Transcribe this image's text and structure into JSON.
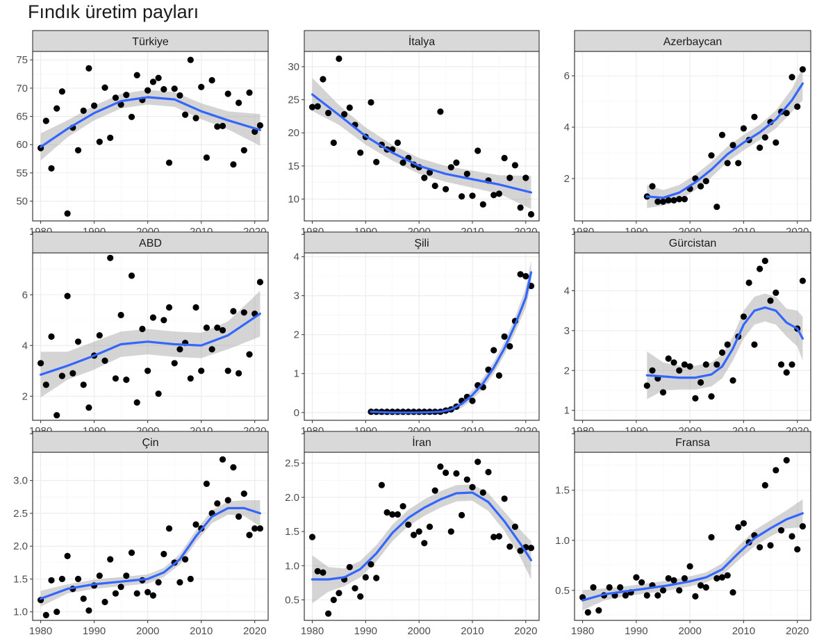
{
  "title": "Fındık üretim payları",
  "colors": {
    "line": "#3366FF",
    "band": "#999999",
    "points": "#000000",
    "strip": "#d9d9d9"
  },
  "chart_data": [
    {
      "type": "scatter",
      "facet": "Türkiye",
      "x_ticks": [
        1980,
        1990,
        2000,
        2010,
        2020
      ],
      "y_ticks": [
        50,
        55,
        60,
        65,
        70,
        75
      ],
      "xlim": [
        1978.5,
        2022.5
      ],
      "ylim": [
        46.5,
        76.5
      ],
      "x": [
        1980,
        1981,
        1982,
        1983,
        1984,
        1985,
        1986,
        1987,
        1988,
        1989,
        1990,
        1991,
        1992,
        1993,
        1994,
        1995,
        1996,
        1997,
        1998,
        1999,
        2000,
        2001,
        2002,
        2003,
        2004,
        2005,
        2006,
        2007,
        2008,
        2009,
        2010,
        2011,
        2012,
        2013,
        2014,
        2015,
        2016,
        2017,
        2018,
        2019,
        2020,
        2021
      ],
      "y": [
        59.4,
        64.2,
        55.8,
        66.4,
        69.4,
        47.8,
        63.0,
        59.0,
        66.0,
        73.5,
        66.9,
        60.5,
        70.1,
        61.2,
        68.3,
        67.1,
        68.8,
        64.9,
        72.3,
        67.9,
        69.6,
        71.1,
        71.8,
        69.8,
        56.8,
        69.9,
        68.7,
        65.3,
        75.0,
        64.7,
        70.2,
        57.7,
        71.4,
        63.2,
        63.3,
        69.0,
        56.5,
        67.4,
        59.0,
        69.2,
        62.3,
        63.4
      ],
      "smooth": {
        "x": [
          1980,
          1985,
          1990,
          1995,
          2000,
          2005,
          2010,
          2015,
          2021
        ],
        "y": [
          59.6,
          62.8,
          65.6,
          67.7,
          68.4,
          68.0,
          65.9,
          64.3,
          62.6
        ],
        "band": [
          2.4,
          1.5,
          1.3,
          1.3,
          1.3,
          1.3,
          1.4,
          1.6,
          2.8
        ]
      }
    },
    {
      "type": "scatter",
      "facet": "İtalya",
      "x_ticks": [
        1980,
        1990,
        2000,
        2010,
        2020
      ],
      "y_ticks": [
        10,
        15,
        20,
        25,
        30
      ],
      "xlim": [
        1978.5,
        2022.5
      ],
      "ylim": [
        6.7,
        32.3
      ],
      "x": [
        1980,
        1981,
        1982,
        1983,
        1984,
        1985,
        1986,
        1987,
        1988,
        1989,
        1990,
        1991,
        1992,
        1993,
        1994,
        1995,
        1996,
        1997,
        1998,
        1999,
        2000,
        2001,
        2002,
        2003,
        2004,
        2005,
        2006,
        2007,
        2008,
        2009,
        2010,
        2011,
        2012,
        2013,
        2014,
        2015,
        2016,
        2017,
        2018,
        2019,
        2020,
        2021
      ],
      "y": [
        23.9,
        24.0,
        28.1,
        23.0,
        18.5,
        31.2,
        22.8,
        23.8,
        21.2,
        17.0,
        19.4,
        24.6,
        15.6,
        18.2,
        17.5,
        17.5,
        18.5,
        15.5,
        16.2,
        15.2,
        14.8,
        13.2,
        14.0,
        12.0,
        23.2,
        11.5,
        14.8,
        15.5,
        10.4,
        13.8,
        10.5,
        17.3,
        9.2,
        12.8,
        10.6,
        10.8,
        16.2,
        13.2,
        15.1,
        8.7,
        13.2,
        7.7
      ],
      "smooth": {
        "x": [
          1980,
          1985,
          1990,
          1995,
          2000,
          2005,
          2010,
          2015,
          2021
        ],
        "y": [
          25.8,
          22.7,
          19.5,
          17.0,
          15.0,
          13.8,
          13.0,
          12.2,
          11.0
        ],
        "band": [
          2.5,
          1.5,
          1.3,
          1.2,
          1.2,
          1.2,
          1.3,
          1.4,
          2.5
        ]
      }
    },
    {
      "type": "scatter",
      "facet": "Azerbaycan",
      "x_ticks": [
        1980,
        1990,
        2000,
        2010,
        2020
      ],
      "y_ticks": [
        2,
        4,
        6
      ],
      "xlim": [
        1978.5,
        2022.5
      ],
      "ylim": [
        0.35,
        6.95
      ],
      "x": [
        1992,
        1993,
        1994,
        1995,
        1996,
        1997,
        1998,
        1999,
        2000,
        2001,
        2002,
        2003,
        2004,
        2005,
        2006,
        2007,
        2008,
        2009,
        2010,
        2011,
        2012,
        2013,
        2014,
        2015,
        2016,
        2017,
        2018,
        2019,
        2020,
        2021
      ],
      "y": [
        1.3,
        1.7,
        1.1,
        1.1,
        1.15,
        1.15,
        1.2,
        1.2,
        1.6,
        2.0,
        1.7,
        1.9,
        2.9,
        0.9,
        3.7,
        2.6,
        3.3,
        2.6,
        3.95,
        3.5,
        4.4,
        3.2,
        3.6,
        4.2,
        3.4,
        4.6,
        4.55,
        5.95,
        4.8,
        6.25
      ],
      "smooth": {
        "x": [
          1992,
          1995,
          1998,
          2001,
          2004,
          2007,
          2010,
          2013,
          2016,
          2019,
          2021
        ],
        "y": [
          1.3,
          1.25,
          1.45,
          1.85,
          2.35,
          2.95,
          3.4,
          3.8,
          4.3,
          5.05,
          5.7
        ],
        "band": [
          0.45,
          0.3,
          0.3,
          0.3,
          0.3,
          0.3,
          0.3,
          0.3,
          0.35,
          0.45,
          0.65
        ]
      }
    },
    {
      "type": "scatter",
      "facet": "ABD",
      "x_ticks": [
        1980,
        1990,
        2000,
        2010,
        2020
      ],
      "y_ticks": [
        2,
        4,
        6
      ],
      "xlim": [
        1978.5,
        2022.5
      ],
      "ylim": [
        1.05,
        7.65
      ],
      "x": [
        1980,
        1981,
        1982,
        1983,
        1984,
        1985,
        1986,
        1987,
        1988,
        1989,
        1990,
        1991,
        1992,
        1993,
        1994,
        1995,
        1996,
        1997,
        1998,
        1999,
        2000,
        2001,
        2002,
        2003,
        2004,
        2005,
        2006,
        2007,
        2008,
        2009,
        2010,
        2011,
        2012,
        2013,
        2014,
        2015,
        2016,
        2017,
        2018,
        2019,
        2020,
        2021
      ],
      "y": [
        3.3,
        2.45,
        4.35,
        1.25,
        2.8,
        5.95,
        2.9,
        4.15,
        2.45,
        1.55,
        3.6,
        4.4,
        3.4,
        7.45,
        2.7,
        5.2,
        2.65,
        6.75,
        1.75,
        4.65,
        3.0,
        5.1,
        2.1,
        5.0,
        5.5,
        3.3,
        3.85,
        4.1,
        2.7,
        5.5,
        3.0,
        4.7,
        3.85,
        4.7,
        4.6,
        3.0,
        5.35,
        2.9,
        5.3,
        3.65,
        5.25,
        6.5
      ],
      "smooth": {
        "x": [
          1980,
          1985,
          1990,
          1995,
          2000,
          2005,
          2010,
          2015,
          2021
        ],
        "y": [
          2.85,
          3.2,
          3.6,
          4.05,
          4.15,
          4.05,
          4.0,
          4.4,
          5.25
        ],
        "band": [
          0.9,
          0.55,
          0.55,
          0.5,
          0.5,
          0.5,
          0.5,
          0.55,
          0.9
        ]
      }
    },
    {
      "type": "scatter",
      "facet": "Şili",
      "x_ticks": [
        1980,
        1990,
        2000,
        2010,
        2020
      ],
      "y_ticks": [
        0,
        1,
        2,
        3,
        4
      ],
      "xlim": [
        1978.5,
        2022.5
      ],
      "ylim": [
        -0.2,
        4.1
      ],
      "x": [
        1991,
        1992,
        1993,
        1994,
        1995,
        1996,
        1997,
        1998,
        1999,
        2000,
        2001,
        2002,
        2003,
        2004,
        2005,
        2006,
        2007,
        2008,
        2009,
        2010,
        2011,
        2012,
        2013,
        2014,
        2015,
        2016,
        2017,
        2018,
        2019,
        2020,
        2021
      ],
      "y": [
        0.02,
        0.02,
        0.02,
        0.02,
        0.02,
        0.02,
        0.02,
        0.02,
        0.02,
        0.02,
        0.02,
        0.02,
        0.02,
        0.02,
        0.05,
        0.08,
        0.15,
        0.3,
        0.4,
        0.3,
        0.7,
        0.65,
        1.1,
        1.6,
        0.95,
        1.95,
        1.7,
        2.35,
        3.55,
        3.5,
        3.25
      ],
      "smooth": {
        "x": [
          1991,
          1995,
          2000,
          2004,
          2006,
          2008,
          2010,
          2012,
          2014,
          2016,
          2018,
          2020,
          2021
        ],
        "y": [
          0.02,
          0.0,
          0.0,
          0.02,
          0.08,
          0.22,
          0.45,
          0.75,
          1.15,
          1.65,
          2.25,
          2.95,
          3.6
        ],
        "band": [
          0.08,
          0.07,
          0.07,
          0.07,
          0.08,
          0.1,
          0.12,
          0.14,
          0.15,
          0.17,
          0.2,
          0.25,
          0.3
        ]
      }
    },
    {
      "type": "scatter",
      "facet": "Gürcistan",
      "x_ticks": [
        1980,
        1990,
        2000,
        2010,
        2020
      ],
      "y_ticks": [
        1,
        2,
        3,
        4
      ],
      "xlim": [
        1978.5,
        2022.5
      ],
      "ylim": [
        0.75,
        4.95
      ],
      "x": [
        1992,
        1993,
        1994,
        1995,
        1996,
        1997,
        1998,
        1999,
        2000,
        2001,
        2002,
        2003,
        2004,
        2005,
        2006,
        2007,
        2008,
        2009,
        2010,
        2011,
        2012,
        2013,
        2014,
        2015,
        2016,
        2017,
        2018,
        2019,
        2020,
        2021
      ],
      "y": [
        1.62,
        2.0,
        1.8,
        1.45,
        2.3,
        2.2,
        2.0,
        2.15,
        2.1,
        1.3,
        1.7,
        2.15,
        1.35,
        2.15,
        2.45,
        2.65,
        1.75,
        2.85,
        3.35,
        4.2,
        2.65,
        4.55,
        4.75,
        3.75,
        3.95,
        2.15,
        1.95,
        2.15,
        3.05,
        4.25
      ],
      "smooth": {
        "x": [
          1992,
          1995,
          1998,
          2001,
          2004,
          2006,
          2008,
          2010,
          2012,
          2014,
          2016,
          2018,
          2020,
          2021
        ],
        "y": [
          1.88,
          1.85,
          1.82,
          1.82,
          1.9,
          2.1,
          2.55,
          3.15,
          3.5,
          3.58,
          3.5,
          3.2,
          3.05,
          2.8
        ],
        "band": [
          0.6,
          0.35,
          0.3,
          0.3,
          0.3,
          0.3,
          0.3,
          0.35,
          0.35,
          0.35,
          0.35,
          0.35,
          0.45,
          0.55
        ]
      }
    },
    {
      "type": "scatter",
      "facet": "Çin",
      "x_ticks": [
        1980,
        1990,
        2000,
        2010,
        2020
      ],
      "y_ticks": [
        1.0,
        1.5,
        2.0,
        2.5,
        3.0
      ],
      "xlim": [
        1978.5,
        2022.5
      ],
      "ylim": [
        0.87,
        3.43
      ],
      "x": [
        1980,
        1981,
        1982,
        1983,
        1984,
        1985,
        1986,
        1987,
        1988,
        1989,
        1990,
        1991,
        1992,
        1993,
        1994,
        1995,
        1996,
        1997,
        1998,
        1999,
        2000,
        2001,
        2002,
        2003,
        2004,
        2005,
        2006,
        2007,
        2008,
        2009,
        2010,
        2011,
        2012,
        2013,
        2014,
        2015,
        2016,
        2017,
        2018,
        2019,
        2020,
        2021
      ],
      "y": [
        1.18,
        0.95,
        1.48,
        1.0,
        1.5,
        1.85,
        1.35,
        1.5,
        1.2,
        1.02,
        1.4,
        1.55,
        1.15,
        1.8,
        1.28,
        1.38,
        1.55,
        1.9,
        1.28,
        1.48,
        1.3,
        1.25,
        1.45,
        1.88,
        2.27,
        1.75,
        1.45,
        1.8,
        1.5,
        2.33,
        2.27,
        2.95,
        2.5,
        2.65,
        3.32,
        2.7,
        3.2,
        2.45,
        2.8,
        2.17,
        2.27,
        2.27
      ],
      "smooth": {
        "x": [
          1980,
          1985,
          1990,
          1995,
          2000,
          2003,
          2006,
          2009,
          2012,
          2015,
          2018,
          2021
        ],
        "y": [
          1.2,
          1.35,
          1.42,
          1.46,
          1.5,
          1.6,
          1.8,
          2.15,
          2.45,
          2.58,
          2.58,
          2.5
        ],
        "band": [
          0.12,
          0.07,
          0.07,
          0.07,
          0.07,
          0.07,
          0.08,
          0.09,
          0.1,
          0.1,
          0.12,
          0.2
        ]
      }
    },
    {
      "type": "scatter",
      "facet": "İran",
      "x_ticks": [
        1980,
        1990,
        2000,
        2010,
        2020
      ],
      "y_ticks": [
        0.5,
        1.0,
        1.5,
        2.0,
        2.5
      ],
      "xlim": [
        1978.5,
        2022.5
      ],
      "ylim": [
        0.2,
        2.66
      ],
      "x": [
        1980,
        1981,
        1982,
        1983,
        1984,
        1985,
        1986,
        1987,
        1988,
        1989,
        1990,
        1991,
        1992,
        1993,
        1994,
        1995,
        1996,
        1997,
        1998,
        1999,
        2000,
        2001,
        2002,
        2003,
        2004,
        2005,
        2006,
        2007,
        2008,
        2009,
        2010,
        2011,
        2012,
        2013,
        2014,
        2015,
        2016,
        2017,
        2018,
        2019,
        2020,
        2021
      ],
      "y": [
        1.42,
        0.92,
        0.9,
        0.3,
        0.5,
        0.6,
        0.8,
        0.98,
        0.67,
        0.55,
        0.83,
        1.02,
        0.82,
        2.18,
        1.78,
        1.75,
        1.75,
        1.87,
        1.6,
        1.45,
        1.5,
        1.33,
        1.57,
        2.1,
        2.45,
        2.36,
        1.5,
        2.35,
        1.74,
        2.26,
        2.15,
        2.52,
        2.07,
        2.37,
        1.42,
        1.43,
        1.98,
        1.28,
        1.57,
        1.22,
        1.27,
        1.26
      ],
      "smooth": {
        "x": [
          1980,
          1983,
          1986,
          1989,
          1992,
          1995,
          1998,
          2001,
          2004,
          2007,
          2010,
          2013,
          2016,
          2019,
          2021
        ],
        "y": [
          0.8,
          0.8,
          0.83,
          0.95,
          1.18,
          1.48,
          1.7,
          1.85,
          1.97,
          2.06,
          2.07,
          1.93,
          1.65,
          1.32,
          1.08
        ],
        "band": [
          0.35,
          0.18,
          0.13,
          0.12,
          0.12,
          0.12,
          0.12,
          0.12,
          0.12,
          0.12,
          0.12,
          0.13,
          0.14,
          0.2,
          0.28
        ]
      }
    },
    {
      "type": "scatter",
      "facet": "Fransa",
      "x_ticks": [
        1980,
        1990,
        2000,
        2010,
        2020
      ],
      "y_ticks": [
        0.5,
        1.0,
        1.5
      ],
      "xlim": [
        1978.5,
        2022.5
      ],
      "ylim": [
        0.2,
        1.88
      ],
      "x": [
        1980,
        1981,
        1982,
        1983,
        1984,
        1985,
        1986,
        1987,
        1988,
        1989,
        1990,
        1991,
        1992,
        1993,
        1994,
        1995,
        1996,
        1997,
        1998,
        1999,
        2000,
        2001,
        2002,
        2003,
        2004,
        2005,
        2006,
        2007,
        2008,
        2009,
        2010,
        2011,
        2012,
        2013,
        2014,
        2015,
        2016,
        2017,
        2018,
        2019,
        2020,
        2021
      ],
      "y": [
        0.43,
        0.28,
        0.53,
        0.3,
        0.45,
        0.53,
        0.45,
        0.53,
        0.45,
        0.48,
        0.63,
        0.58,
        0.45,
        0.55,
        0.45,
        0.5,
        0.62,
        0.6,
        0.5,
        0.62,
        0.74,
        0.44,
        0.55,
        0.53,
        1.03,
        0.62,
        0.63,
        0.65,
        0.48,
        1.13,
        1.17,
        0.98,
        1.05,
        0.93,
        1.55,
        0.95,
        1.7,
        1.1,
        1.8,
        1.04,
        0.91,
        1.14
      ],
      "smooth": {
        "x": [
          1980,
          1984,
          1988,
          1992,
          1996,
          2000,
          2003,
          2006,
          2009,
          2012,
          2015,
          2018,
          2021
        ],
        "y": [
          0.4,
          0.46,
          0.49,
          0.52,
          0.55,
          0.59,
          0.63,
          0.71,
          0.87,
          1.02,
          1.12,
          1.21,
          1.27
        ],
        "band": [
          0.1,
          0.06,
          0.05,
          0.05,
          0.05,
          0.05,
          0.05,
          0.06,
          0.07,
          0.08,
          0.08,
          0.09,
          0.14
        ]
      }
    }
  ]
}
